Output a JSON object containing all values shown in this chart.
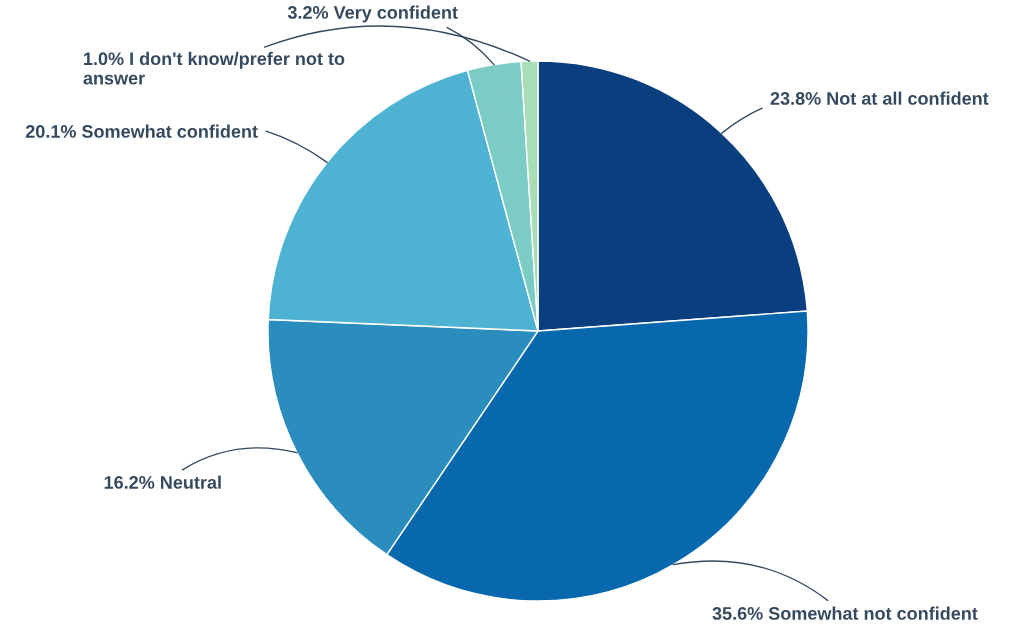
{
  "chart_data": {
    "type": "pie",
    "categories": [
      "Not at all confident",
      "Somewhat not confident",
      "Neutral",
      "Somewhat confident",
      "Very confident",
      "I don't know/prefer not to answer"
    ],
    "values": [
      23.8,
      35.6,
      16.2,
      20.1,
      3.2,
      1.0
    ],
    "value_labels": [
      "23.8%",
      "35.6%",
      "16.2%",
      "20.1%",
      "3.2%",
      "1.0%"
    ],
    "colors": [
      "#0a3f7f",
      "#0868ad",
      "#2b8cbe",
      "#4eb3d3",
      "#7bccc4",
      "#a8ddb5"
    ],
    "legend": false
  }
}
